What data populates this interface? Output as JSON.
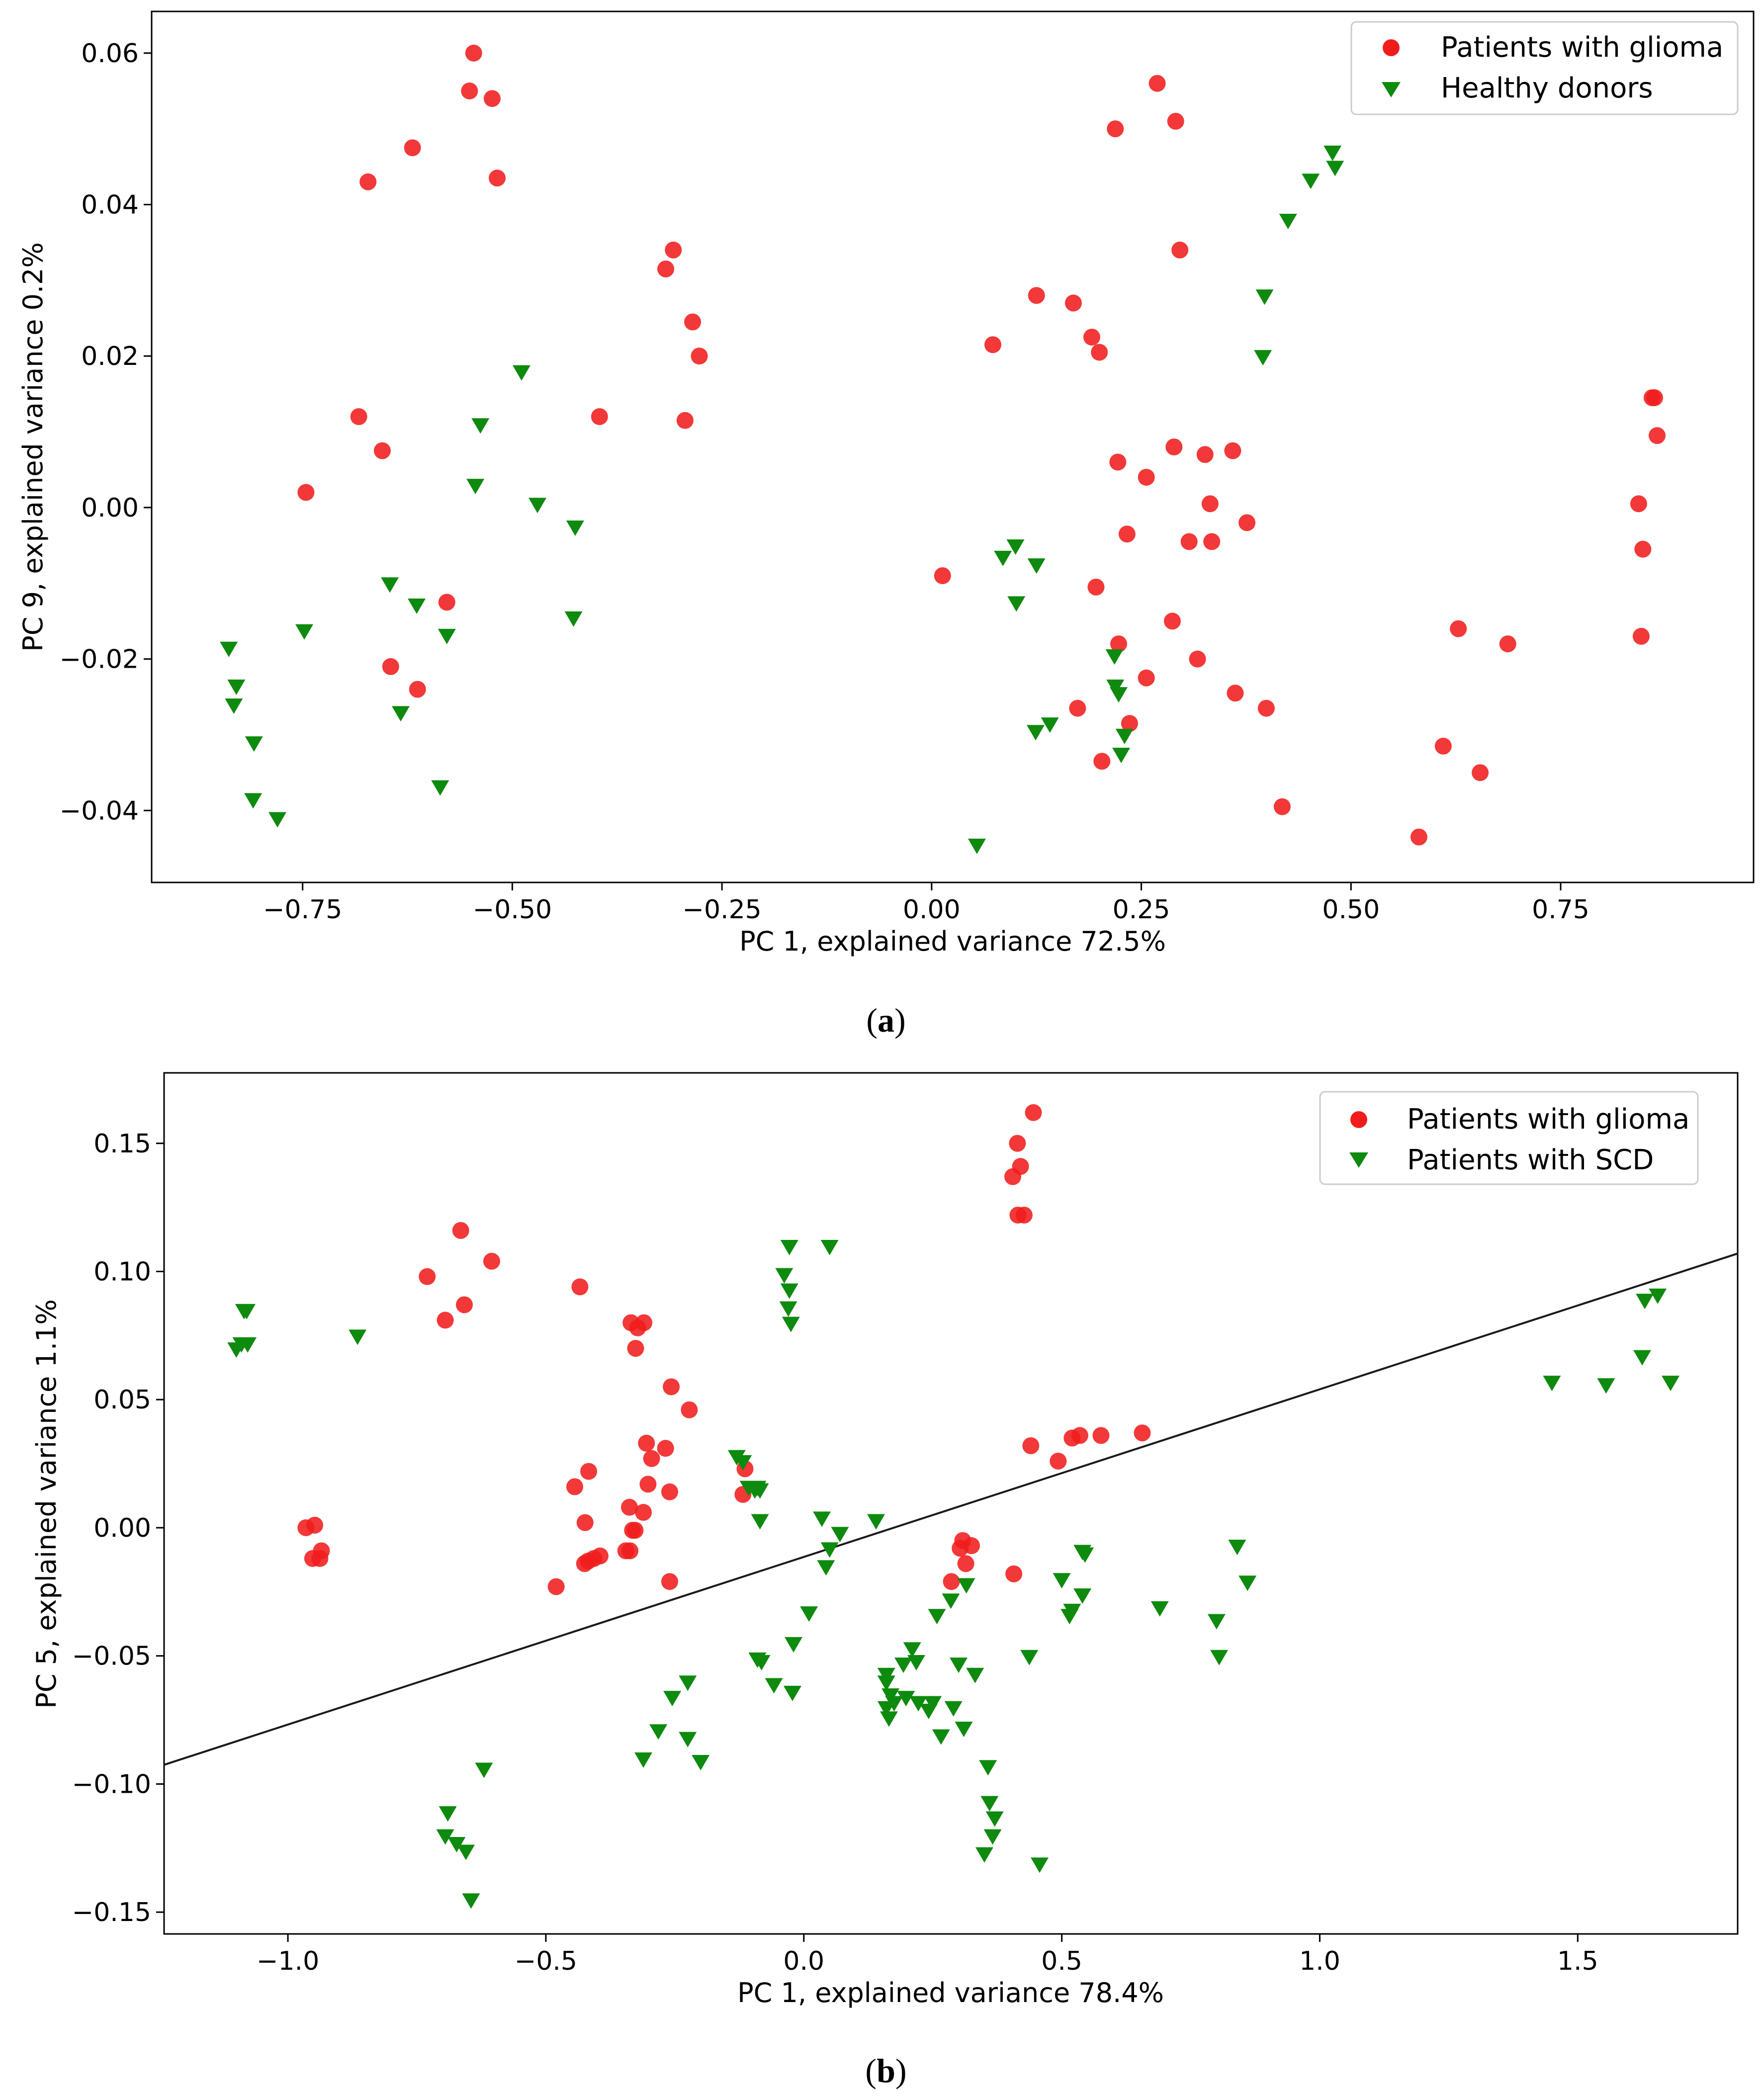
{
  "chart_data": [
    {
      "type": "scatter",
      "caption_letter": "a",
      "xlabel": "PC 1, explained variance 72.5%",
      "ylabel": "PC 9, explained variance 0.2%",
      "xlim": [
        -0.93,
        0.98
      ],
      "ylim": [
        -0.0495,
        0.0655
      ],
      "xticks": [
        -0.75,
        -0.5,
        -0.25,
        0.0,
        0.25,
        0.5,
        0.75
      ],
      "xtick_labels": [
        "−0.75",
        "−0.50",
        "−0.25",
        "0.00",
        "0.25",
        "0.50",
        "0.75"
      ],
      "yticks": [
        -0.04,
        -0.02,
        0.0,
        0.02,
        0.04,
        0.06
      ],
      "ytick_labels": [
        "−0.04",
        "−0.02",
        "0.00",
        "0.02",
        "0.04",
        "0.06"
      ],
      "legend_position": "top-right",
      "colors": {
        "glioma": "#f01c1c",
        "healthy": "#0e8a0e"
      },
      "series": [
        {
          "name": "Patients with glioma",
          "marker": "circle",
          "points": [
            [
              -0.546,
              0.06
            ],
            [
              -0.551,
              0.055
            ],
            [
              -0.524,
              0.054
            ],
            [
              -0.518,
              0.0435
            ],
            [
              -0.619,
              0.0475
            ],
            [
              -0.672,
              0.043
            ],
            [
              -0.308,
              0.034
            ],
            [
              -0.317,
              0.0315
            ],
            [
              -0.285,
              0.0245
            ],
            [
              -0.277,
              0.02
            ],
            [
              -0.294,
              0.0115
            ],
            [
              -0.396,
              0.012
            ],
            [
              -0.683,
              0.012
            ],
            [
              -0.655,
              0.0075
            ],
            [
              -0.746,
              0.002
            ],
            [
              -0.578,
              -0.0125
            ],
            [
              -0.645,
              -0.021
            ],
            [
              -0.613,
              -0.024
            ],
            [
              0.269,
              0.056
            ],
            [
              0.291,
              0.051
            ],
            [
              0.219,
              0.05
            ],
            [
              0.296,
              0.034
            ],
            [
              0.125,
              0.028
            ],
            [
              0.169,
              0.027
            ],
            [
              0.191,
              0.0225
            ],
            [
              0.2,
              0.0205
            ],
            [
              0.073,
              0.0215
            ],
            [
              0.289,
              0.008
            ],
            [
              0.326,
              0.007
            ],
            [
              0.359,
              0.0075
            ],
            [
              0.222,
              0.006
            ],
            [
              0.256,
              0.004
            ],
            [
              0.332,
              0.0005
            ],
            [
              0.376,
              -0.002
            ],
            [
              0.233,
              -0.0035
            ],
            [
              0.307,
              -0.0045
            ],
            [
              0.334,
              -0.0045
            ],
            [
              0.013,
              -0.009
            ],
            [
              0.196,
              -0.0105
            ],
            [
              0.287,
              -0.015
            ],
            [
              0.223,
              -0.018
            ],
            [
              0.317,
              -0.02
            ],
            [
              0.256,
              -0.0225
            ],
            [
              0.362,
              -0.0245
            ],
            [
              0.174,
              -0.0265
            ],
            [
              0.399,
              -0.0265
            ],
            [
              0.236,
              -0.0285
            ],
            [
              0.203,
              -0.0335
            ],
            [
              0.418,
              -0.0395
            ],
            [
              0.628,
              -0.016
            ],
            [
              0.687,
              -0.018
            ],
            [
              0.61,
              -0.0315
            ],
            [
              0.654,
              -0.035
            ],
            [
              0.581,
              -0.0435
            ],
            [
              0.846,
              -0.017
            ],
            [
              0.848,
              -0.0055
            ],
            [
              0.843,
              0.0005
            ],
            [
              0.859,
              0.0145
            ],
            [
              0.862,
              0.0145
            ],
            [
              0.865,
              0.0095
            ]
          ]
        },
        {
          "name": "Healthy donors",
          "marker": "triangle-down",
          "points": [
            [
              -0.489,
              0.018
            ],
            [
              -0.538,
              0.011
            ],
            [
              -0.544,
              0.003
            ],
            [
              -0.47,
              0.0005
            ],
            [
              -0.425,
              -0.0025
            ],
            [
              -0.427,
              -0.0145
            ],
            [
              -0.646,
              -0.01
            ],
            [
              -0.614,
              -0.0128
            ],
            [
              -0.578,
              -0.0168
            ],
            [
              -0.748,
              -0.0162
            ],
            [
              -0.838,
              -0.0185
            ],
            [
              -0.829,
              -0.0235
            ],
            [
              -0.832,
              -0.026
            ],
            [
              -0.808,
              -0.031
            ],
            [
              -0.809,
              -0.0385
            ],
            [
              -0.78,
              -0.041
            ],
            [
              -0.633,
              -0.027
            ],
            [
              -0.586,
              -0.0368
            ],
            [
              0.478,
              0.047
            ],
            [
              0.481,
              0.045
            ],
            [
              0.452,
              0.0433
            ],
            [
              0.425,
              0.038
            ],
            [
              0.397,
              0.028
            ],
            [
              0.395,
              0.02
            ],
            [
              0.1,
              -0.005
            ],
            [
              0.085,
              -0.0065
            ],
            [
              0.125,
              -0.0075
            ],
            [
              0.101,
              -0.0125
            ],
            [
              0.218,
              -0.0195
            ],
            [
              0.219,
              -0.0235
            ],
            [
              0.223,
              -0.0245
            ],
            [
              0.141,
              -0.0285
            ],
            [
              0.124,
              -0.0295
            ],
            [
              0.23,
              -0.03
            ],
            [
              0.226,
              -0.0325
            ],
            [
              0.054,
              -0.0445
            ]
          ]
        }
      ]
    },
    {
      "type": "scatter",
      "caption_letter": "b",
      "xlabel": "PC 1, explained variance 78.4%",
      "ylabel": "PC 5, explained variance 1.1%",
      "xlim": [
        -1.24,
        1.81
      ],
      "ylim": [
        -0.1585,
        0.1775
      ],
      "xticks": [
        -1.0,
        -0.5,
        0.0,
        0.5,
        1.0,
        1.5
      ],
      "xtick_labels": [
        "−1.0",
        "−0.5",
        "0.0",
        "0.5",
        "1.0",
        "1.5"
      ],
      "yticks": [
        -0.15,
        -0.1,
        -0.05,
        0.0,
        0.05,
        0.1,
        0.15
      ],
      "ytick_labels": [
        "−0.15",
        "−0.10",
        "−0.05",
        "0.00",
        "0.05",
        "0.10",
        "0.15"
      ],
      "legend_position": "top-right",
      "colors": {
        "glioma": "#f01c1c",
        "scd": "#0e8a0e",
        "line": "#1a1a1a"
      },
      "line": {
        "x": [
          -1.24,
          1.81
        ],
        "y": [
          -0.0925,
          0.107
        ]
      },
      "series": [
        {
          "name": "Patients with glioma",
          "marker": "circle",
          "points": [
            [
              0.445,
              0.162
            ],
            [
              0.414,
              0.15
            ],
            [
              0.42,
              0.141
            ],
            [
              0.405,
              0.137
            ],
            [
              0.415,
              0.122
            ],
            [
              0.427,
              0.122
            ],
            [
              -0.665,
              0.116
            ],
            [
              -0.605,
              0.104
            ],
            [
              -0.73,
              0.098
            ],
            [
              -0.658,
              0.087
            ],
            [
              -0.695,
              0.081
            ],
            [
              -0.434,
              0.094
            ],
            [
              -0.335,
              0.08
            ],
            [
              -0.31,
              0.08
            ],
            [
              -0.322,
              0.078
            ],
            [
              -0.326,
              0.07
            ],
            [
              -0.257,
              0.055
            ],
            [
              -0.222,
              0.046
            ],
            [
              -0.305,
              0.033
            ],
            [
              -0.268,
              0.031
            ],
            [
              -0.295,
              0.027
            ],
            [
              -0.417,
              0.022
            ],
            [
              -0.444,
              0.016
            ],
            [
              -0.302,
              0.017
            ],
            [
              -0.26,
              0.014
            ],
            [
              -0.114,
              0.023
            ],
            [
              -0.118,
              0.013
            ],
            [
              -0.338,
              0.008
            ],
            [
              -0.311,
              0.006
            ],
            [
              -0.424,
              0.002
            ],
            [
              -0.327,
              -0.001
            ],
            [
              -0.332,
              -0.001
            ],
            [
              -0.965,
              0.0
            ],
            [
              -0.948,
              0.001
            ],
            [
              -0.952,
              -0.012
            ],
            [
              -0.938,
              -0.012
            ],
            [
              -0.935,
              -0.009
            ],
            [
              -0.418,
              -0.013
            ],
            [
              -0.425,
              -0.014
            ],
            [
              -0.407,
              -0.012
            ],
            [
              -0.395,
              -0.011
            ],
            [
              -0.345,
              -0.009
            ],
            [
              -0.337,
              -0.009
            ],
            [
              -0.48,
              -0.023
            ],
            [
              -0.26,
              -0.021
            ],
            [
              0.44,
              0.032
            ],
            [
              0.52,
              0.035
            ],
            [
              0.535,
              0.036
            ],
            [
              0.576,
              0.036
            ],
            [
              0.656,
              0.037
            ],
            [
              0.493,
              0.026
            ],
            [
              0.308,
              -0.005
            ],
            [
              0.325,
              -0.007
            ],
            [
              0.303,
              -0.008
            ],
            [
              0.314,
              -0.014
            ],
            [
              0.286,
              -0.021
            ],
            [
              0.407,
              -0.018
            ]
          ]
        },
        {
          "name": "Patients with SCD",
          "marker": "triangle-down",
          "points": [
            [
              -1.085,
              0.085
            ],
            [
              -1.08,
              0.085
            ],
            [
              -1.09,
              0.072
            ],
            [
              -1.078,
              0.072
            ],
            [
              -1.1,
              0.07
            ],
            [
              -0.865,
              0.075
            ],
            [
              -0.028,
              0.11
            ],
            [
              0.05,
              0.11
            ],
            [
              -0.038,
              0.099
            ],
            [
              -0.028,
              0.093
            ],
            [
              -0.03,
              0.086
            ],
            [
              -0.025,
              0.08
            ],
            [
              -0.13,
              0.028
            ],
            [
              -0.118,
              0.026
            ],
            [
              -0.107,
              0.016
            ],
            [
              -0.09,
              0.016
            ],
            [
              -0.095,
              0.015
            ],
            [
              -0.085,
              0.015
            ],
            [
              -0.085,
              0.003
            ],
            [
              0.035,
              0.004
            ],
            [
              0.14,
              0.003
            ],
            [
              0.07,
              -0.002
            ],
            [
              0.05,
              -0.008
            ],
            [
              0.043,
              -0.015
            ],
            [
              0.01,
              -0.033
            ],
            [
              -0.02,
              -0.045
            ],
            [
              -0.09,
              -0.051
            ],
            [
              -0.082,
              -0.052
            ],
            [
              -0.058,
              -0.061
            ],
            [
              -0.022,
              -0.064
            ],
            [
              -0.225,
              -0.06
            ],
            [
              -0.255,
              -0.066
            ],
            [
              -0.282,
              -0.079
            ],
            [
              -0.225,
              -0.082
            ],
            [
              -0.311,
              -0.09
            ],
            [
              -0.2,
              -0.091
            ],
            [
              -0.62,
              -0.094
            ],
            [
              -0.69,
              -0.111
            ],
            [
              -0.695,
              -0.12
            ],
            [
              -0.673,
              -0.123
            ],
            [
              -0.655,
              -0.126
            ],
            [
              -0.645,
              -0.145
            ],
            [
              0.16,
              -0.057
            ],
            [
              0.16,
              -0.06
            ],
            [
              0.168,
              -0.065
            ],
            [
              0.175,
              -0.068
            ],
            [
              0.16,
              -0.07
            ],
            [
              0.165,
              -0.074
            ],
            [
              0.193,
              -0.053
            ],
            [
              0.21,
              -0.047
            ],
            [
              0.218,
              -0.052
            ],
            [
              0.198,
              -0.066
            ],
            [
              0.222,
              -0.068
            ],
            [
              0.25,
              -0.068
            ],
            [
              0.242,
              -0.071
            ],
            [
              0.258,
              -0.034
            ],
            [
              0.285,
              -0.028
            ],
            [
              0.315,
              -0.022
            ],
            [
              0.3,
              -0.053
            ],
            [
              0.332,
              -0.057
            ],
            [
              0.29,
              -0.07
            ],
            [
              0.31,
              -0.078
            ],
            [
              0.266,
              -0.081
            ],
            [
              0.357,
              -0.093
            ],
            [
              0.36,
              -0.107
            ],
            [
              0.37,
              -0.113
            ],
            [
              0.366,
              -0.12
            ],
            [
              0.35,
              -0.127
            ],
            [
              0.437,
              -0.05
            ],
            [
              0.457,
              -0.131
            ],
            [
              0.54,
              -0.009
            ],
            [
              0.545,
              -0.01
            ],
            [
              0.5,
              -0.02
            ],
            [
              0.54,
              -0.026
            ],
            [
              0.52,
              -0.032
            ],
            [
              0.515,
              -0.034
            ],
            [
              0.69,
              -0.031
            ],
            [
              0.8,
              -0.036
            ],
            [
              0.805,
              -0.05
            ],
            [
              0.84,
              -0.007
            ],
            [
              0.86,
              -0.021
            ],
            [
              1.45,
              0.057
            ],
            [
              1.555,
              0.056
            ],
            [
              1.63,
              0.089
            ],
            [
              1.655,
              0.091
            ],
            [
              1.68,
              0.057
            ],
            [
              1.625,
              0.067
            ]
          ]
        }
      ]
    }
  ]
}
